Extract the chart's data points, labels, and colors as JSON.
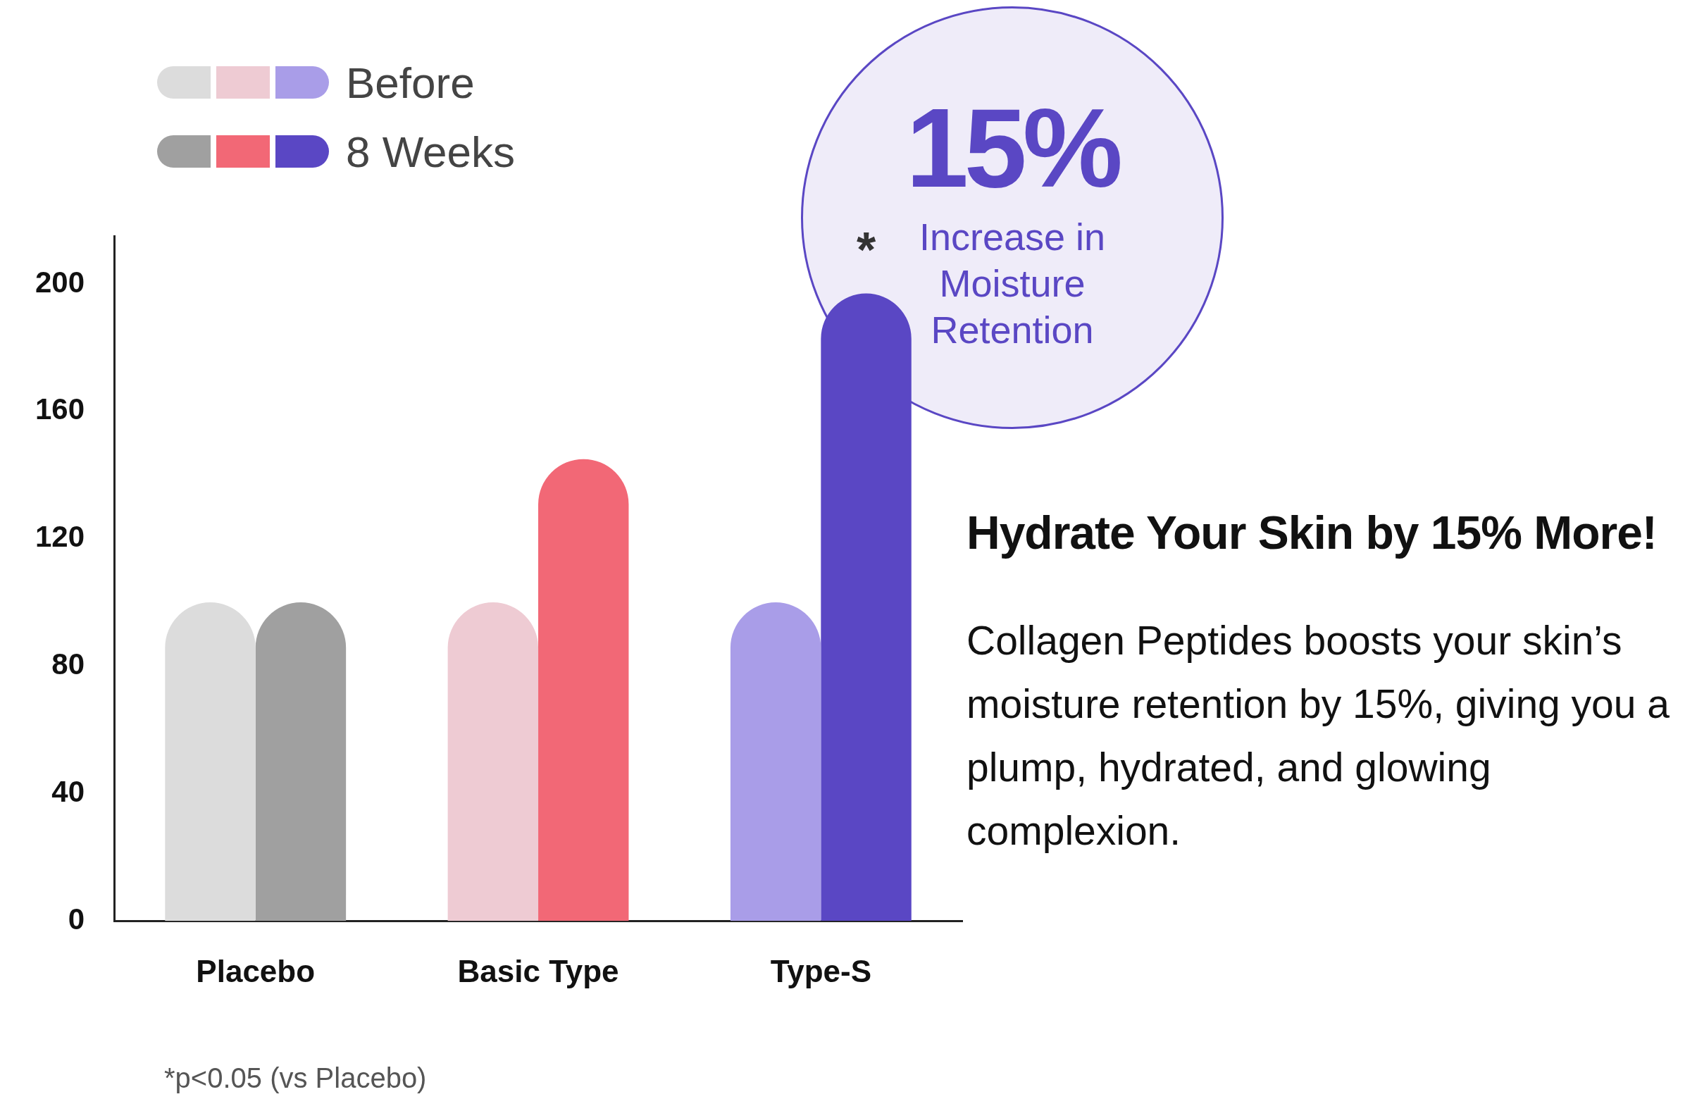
{
  "chart_data": {
    "type": "bar",
    "title": "Hydrate Your Skin by 15% More!",
    "subtitle": "Collagen Peptides boosts your skin’s moisture retention by 15%, giving you a plump, hydrated, and glowing complexion.",
    "categories": [
      "Placebo",
      "Basic Type",
      "Type-S"
    ],
    "series": [
      {
        "name": "Before",
        "colors": [
          "#dcdcdc",
          "#eecbd3",
          "#a99de8"
        ],
        "values": [
          100,
          100,
          100
        ]
      },
      {
        "name": "8 Weeks",
        "colors": [
          "#a0a0a0",
          "#f26876",
          "#5a47c4"
        ],
        "values": [
          100,
          145,
          197
        ]
      }
    ],
    "ylim": [
      0,
      215
    ],
    "yticks": [
      0,
      40,
      80,
      120,
      160,
      200
    ],
    "grid": false,
    "legend": "top left",
    "annotations": [
      "15%",
      "Increase in Moisture Retention",
      "*p<0.05 (vs Placebo)",
      "*"
    ]
  }
}
